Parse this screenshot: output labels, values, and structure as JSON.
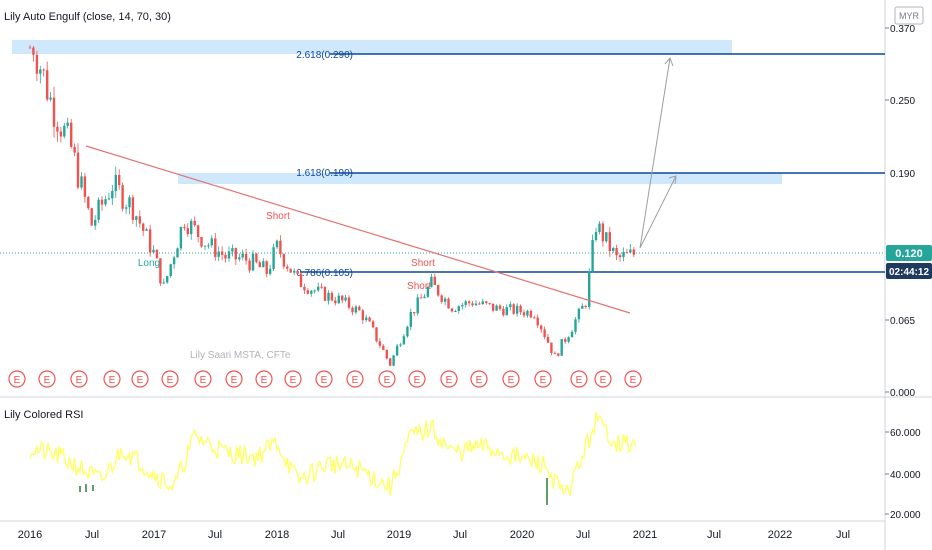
{
  "indicator_title": "Lily Auto Engulf (close, 14, 70, 30)",
  "rsi_title": "Lily Colored RSI",
  "currency_label": "MYR",
  "watermark": "Lily Saari  MSTA, CFTe",
  "price_axis": {
    "ticks": [
      "0.370",
      "0.250",
      "0.190",
      "0.065",
      "0.000"
    ]
  },
  "rsi_axis": {
    "ticks": [
      "60.000",
      "40.000",
      "20.000"
    ]
  },
  "time_axis": {
    "ticks": [
      "2016",
      "Jul",
      "2017",
      "Jul",
      "2018",
      "Jul",
      "2019",
      "Jul",
      "2020",
      "Jul",
      "2021",
      "Jul",
      "2022",
      "Jul"
    ]
  },
  "price_badge": "0.120",
  "countdown_badge": "02:44:12",
  "fib_labels": [
    "2.618(0.290)",
    "1.618(0.190)",
    "0.786(0.105)"
  ],
  "signal_labels": [
    "Short",
    "Short",
    "Short",
    "Long"
  ],
  "earnings_marker": "E",
  "earnings_count": 21,
  "colors": {
    "bull": "#26a69a",
    "bear": "#ef5350",
    "trendline": "#e57373",
    "fib_line": "#0d47a1",
    "fib_zone": "#bbdefb",
    "rsi_line": "#ffff66",
    "badge_price": "#26a69a",
    "badge_time": "#1e3a5f",
    "earnings": "#ef5350"
  },
  "chart_data": {
    "type": "candlestick",
    "title": "Lily Auto Engulf (close, 14, 70, 30)",
    "x_range": [
      "2016-01",
      "2022-12"
    ],
    "y_range": [
      0.0,
      0.37
    ],
    "log_scale": true,
    "current_price": 0.12,
    "close_series": [
      {
        "date": "2016-01",
        "value": 0.31
      },
      {
        "date": "2016-03",
        "value": 0.25
      },
      {
        "date": "2016-05",
        "value": 0.21
      },
      {
        "date": "2016-07",
        "value": 0.145
      },
      {
        "date": "2016-09",
        "value": 0.18
      },
      {
        "date": "2016-11",
        "value": 0.16
      },
      {
        "date": "2017-01",
        "value": 0.12
      },
      {
        "date": "2017-02",
        "value": 0.092
      },
      {
        "date": "2017-04",
        "value": 0.15
      },
      {
        "date": "2017-06",
        "value": 0.13
      },
      {
        "date": "2017-08",
        "value": 0.117
      },
      {
        "date": "2017-10",
        "value": 0.115
      },
      {
        "date": "2017-12",
        "value": 0.105
      },
      {
        "date": "2018-01",
        "value": 0.125
      },
      {
        "date": "2018-03",
        "value": 0.098
      },
      {
        "date": "2018-05",
        "value": 0.088
      },
      {
        "date": "2018-07",
        "value": 0.082
      },
      {
        "date": "2018-09",
        "value": 0.072
      },
      {
        "date": "2018-11",
        "value": 0.05
      },
      {
        "date": "2018-12",
        "value": 0.037
      },
      {
        "date": "2019-02",
        "value": 0.07
      },
      {
        "date": "2019-04",
        "value": 0.095
      },
      {
        "date": "2019-06",
        "value": 0.076
      },
      {
        "date": "2019-08",
        "value": 0.08
      },
      {
        "date": "2019-10",
        "value": 0.075
      },
      {
        "date": "2019-12",
        "value": 0.073
      },
      {
        "date": "2020-02",
        "value": 0.071
      },
      {
        "date": "2020-04",
        "value": 0.042
      },
      {
        "date": "2020-06",
        "value": 0.065
      },
      {
        "date": "2020-07",
        "value": 0.08
      },
      {
        "date": "2020-08",
        "value": 0.145
      },
      {
        "date": "2020-10",
        "value": 0.115
      },
      {
        "date": "2020-12",
        "value": 0.12
      }
    ],
    "fibonacci_levels": [
      {
        "label": "2.618",
        "value": 0.29
      },
      {
        "label": "1.618",
        "value": 0.19
      },
      {
        "label": "0.786",
        "value": 0.105
      }
    ],
    "trendline": {
      "start": {
        "date": "2016-06",
        "value": 0.205
      },
      "end": {
        "date": "2020-11",
        "value": 0.063
      }
    },
    "projections": [
      {
        "from": {
          "date": "2020-12",
          "value": 0.12
        },
        "to": {
          "date": "2021-03",
          "value": 0.29
        }
      },
      {
        "from": {
          "date": "2020-12",
          "value": 0.12
        },
        "to": {
          "date": "2021-03",
          "value": 0.19
        }
      }
    ],
    "rsi": {
      "title": "Lily Colored RSI",
      "y_range": [
        20,
        70
      ],
      "series": [
        {
          "date": "2016-01",
          "value": 52
        },
        {
          "date": "2016-04",
          "value": 48
        },
        {
          "date": "2016-06",
          "value": 42
        },
        {
          "date": "2016-08",
          "value": 36
        },
        {
          "date": "2016-10",
          "value": 52
        },
        {
          "date": "2017-01",
          "value": 40
        },
        {
          "date": "2017-03",
          "value": 33
        },
        {
          "date": "2017-05",
          "value": 58
        },
        {
          "date": "2017-08",
          "value": 50
        },
        {
          "date": "2017-11",
          "value": 48
        },
        {
          "date": "2018-01",
          "value": 55
        },
        {
          "date": "2018-03",
          "value": 36
        },
        {
          "date": "2018-06",
          "value": 45
        },
        {
          "date": "2018-09",
          "value": 42
        },
        {
          "date": "2018-12",
          "value": 33
        },
        {
          "date": "2019-02",
          "value": 58
        },
        {
          "date": "2019-04",
          "value": 62
        },
        {
          "date": "2019-06",
          "value": 50
        },
        {
          "date": "2019-09",
          "value": 53
        },
        {
          "date": "2019-12",
          "value": 48
        },
        {
          "date": "2020-03",
          "value": 44
        },
        {
          "date": "2020-05",
          "value": 28
        },
        {
          "date": "2020-07",
          "value": 52
        },
        {
          "date": "2020-08",
          "value": 66
        },
        {
          "date": "2020-10",
          "value": 55
        },
        {
          "date": "2020-12",
          "value": 53
        }
      ]
    }
  }
}
